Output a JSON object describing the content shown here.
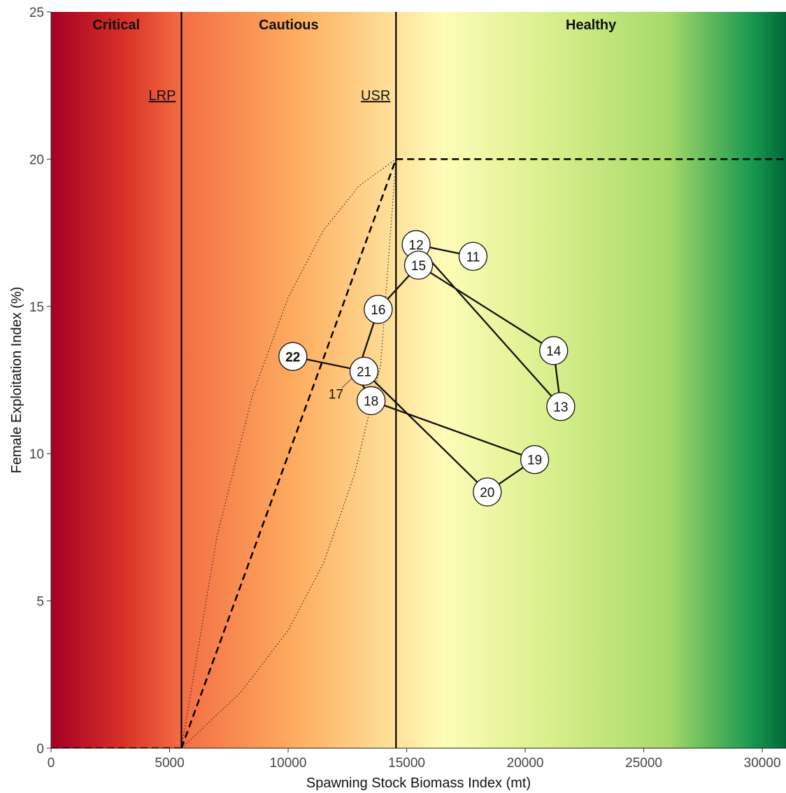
{
  "chart_data": {
    "type": "scatter",
    "title": "",
    "xlabel": "Spawning Stock Biomass Index (mt)",
    "ylabel": "Female Exploitation Index (%)",
    "xlim": [
      0,
      31000
    ],
    "ylim": [
      0,
      25
    ],
    "xticks": [
      0,
      5000,
      10000,
      15000,
      20000,
      25000,
      30000
    ],
    "yticks": [
      0,
      5,
      10,
      15,
      20,
      25
    ],
    "grid": false,
    "legend": "none",
    "zones": [
      {
        "label": "Critical",
        "xmin": 0,
        "xmax": 5500
      },
      {
        "label": "Cautious",
        "xmin": 5500,
        "xmax": 14550
      },
      {
        "label": "Healthy",
        "xmin": 14550,
        "xmax": 31000
      }
    ],
    "reference_lines": [
      {
        "label": "LRP",
        "x": 5500
      },
      {
        "label": "USR",
        "x": 14550
      }
    ],
    "removal_reference": {
      "style": "dashed",
      "segments": [
        {
          "x": [
            0,
            5500
          ],
          "y": [
            0,
            0
          ]
        },
        {
          "x": [
            5500,
            14550
          ],
          "y": [
            0,
            20
          ]
        },
        {
          "x": [
            14550,
            31000
          ],
          "y": [
            20,
            20
          ]
        }
      ]
    },
    "uncertainty_band": {
      "style": "dotted",
      "upper": {
        "x": [
          5500,
          7000,
          8500,
          10000,
          11500,
          13000,
          14550
        ],
        "y": [
          0,
          7.2,
          12.0,
          15.3,
          17.6,
          19.1,
          20
        ]
      },
      "lower": {
        "x": [
          5500,
          8000,
          10000,
          11500,
          12800,
          13900,
          14550
        ],
        "y": [
          0,
          1.9,
          4.0,
          6.3,
          9.3,
          13.0,
          20
        ]
      }
    },
    "colors": {
      "critical": "#a50026",
      "cautious": "#f46d43",
      "usr_zone": "#fefcb8",
      "healthy": "#006837",
      "highlight_label": "#e8000b"
    },
    "series": [
      {
        "points": [
          {
            "label": "11",
            "x": 17800,
            "y": 16.7
          },
          {
            "label": "12",
            "x": 15400,
            "y": 17.1
          },
          {
            "label": "13",
            "x": 21500,
            "y": 11.6
          },
          {
            "label": "14",
            "x": 21200,
            "y": 13.5
          },
          {
            "label": "15",
            "x": 15500,
            "y": 16.4
          },
          {
            "label": "16",
            "x": 13800,
            "y": 14.9
          },
          {
            "label": "17",
            "x": 12900,
            "y": 12.7
          },
          {
            "label": "18",
            "x": 13500,
            "y": 11.8
          },
          {
            "label": "19",
            "x": 20400,
            "y": 9.8
          },
          {
            "label": "20",
            "x": 18400,
            "y": 8.7
          },
          {
            "label": "21",
            "x": 13200,
            "y": 12.8
          },
          {
            "label": "22",
            "x": 10200,
            "y": 13.3,
            "highlight": true
          }
        ]
      }
    ]
  }
}
